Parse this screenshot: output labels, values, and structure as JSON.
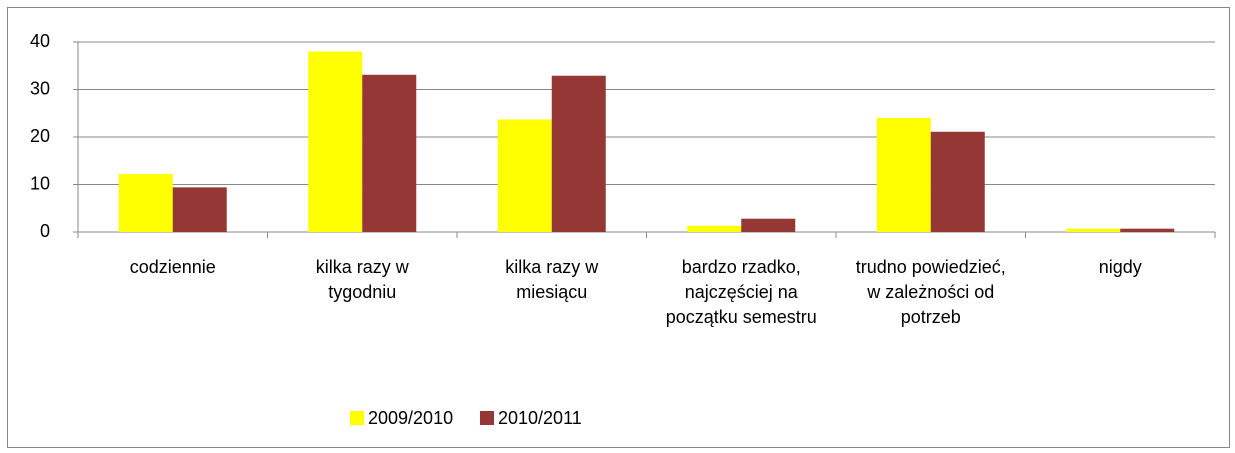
{
  "chart_data": {
    "type": "bar",
    "categories": [
      "codziennie",
      "kilka razy w tygodniu",
      "kilka razy w miesiącu",
      "bardzo rzadko, najczęściej na początku semestru",
      "trudno powiedzieć, w zależności od potrzeb",
      "nigdy"
    ],
    "series": [
      {
        "name": "2009/2010",
        "color": "#ffff00",
        "values": [
          12.2,
          38,
          23.7,
          1.3,
          24,
          0.7
        ]
      },
      {
        "name": "2010/2011",
        "color": "#953735",
        "values": [
          9.4,
          33.1,
          32.9,
          2.8,
          21.1,
          0.7
        ]
      }
    ],
    "ylim": [
      0,
      40
    ],
    "yticks": [
      0,
      10,
      20,
      30,
      40
    ],
    "grid": true,
    "legend": "bottom"
  }
}
